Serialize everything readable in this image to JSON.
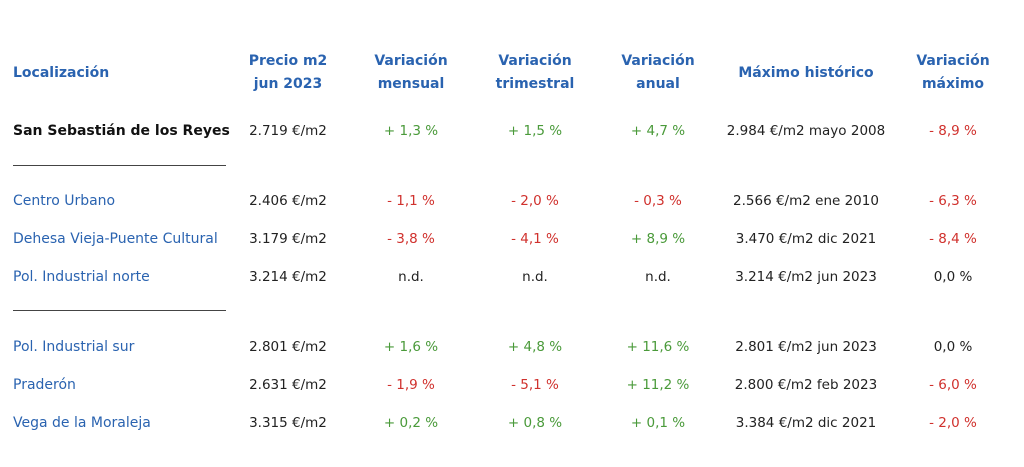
{
  "headers": {
    "location": "Localización",
    "price": [
      "Precio m2",
      "jun 2023"
    ],
    "monthly": [
      "Variación",
      "mensual"
    ],
    "quarterly": [
      "Variación",
      "trimestral"
    ],
    "annual": [
      "Variación",
      "anual"
    ],
    "max_hist": "Máximo histórico",
    "max_var": [
      "Variación",
      "máximo"
    ]
  },
  "rows": [
    {
      "name": "San Sebastián de los Reyes",
      "price": "2.719 €/m2",
      "monthly": "+ 1,3 %",
      "quarterly": "+ 1,5 %",
      "annual": "+ 4,7 %",
      "max_hist": "2.984 €/m2 mayo 2008",
      "max_var": "- 8,9 %"
    },
    {
      "name": "Centro Urbano",
      "price": "2.406 €/m2",
      "monthly": "- 1,1 %",
      "quarterly": "- 2,0 %",
      "annual": "- 0,3 %",
      "max_hist": "2.566 €/m2 ene 2010",
      "max_var": "- 6,3 %"
    },
    {
      "name": "Dehesa Vieja-Puente Cultural",
      "price": "3.179 €/m2",
      "monthly": "- 3,8 %",
      "quarterly": "- 4,1 %",
      "annual": "+ 8,9 %",
      "max_hist": "3.470 €/m2 dic 2021",
      "max_var": "- 8,4 %"
    },
    {
      "name": "Pol. Industrial norte",
      "price": "3.214 €/m2",
      "monthly": "n.d.",
      "quarterly": "n.d.",
      "annual": "n.d.",
      "max_hist": "3.214 €/m2 jun 2023",
      "max_var": "0,0 %"
    },
    {
      "name": "Pol. Industrial sur",
      "price": "2.801 €/m2",
      "monthly": "+ 1,6 %",
      "quarterly": "+ 4,8 %",
      "annual": "+ 11,6 %",
      "max_hist": "2.801 €/m2 jun 2023",
      "max_var": "0,0 %"
    },
    {
      "name": "Praderón",
      "price": "2.631 €/m2",
      "monthly": "- 1,9 %",
      "quarterly": "- 5,1 %",
      "annual": "+ 11,2 %",
      "max_hist": "2.800 €/m2 feb 2023",
      "max_var": "- 6,0 %"
    },
    {
      "name": "Vega de la Moraleja",
      "price": "3.315 €/m2",
      "monthly": "+ 0,2 %",
      "quarterly": "+ 0,8 %",
      "annual": "+ 0,1 %",
      "max_hist": "3.384 €/m2 dic 2021",
      "max_var": "- 2,0 %"
    }
  ],
  "colors": {
    "header": "#2a63b0",
    "location": "#2a63b0",
    "positive": "#4a9a3a",
    "negative": "#d0312d",
    "neutral": "#222222"
  }
}
